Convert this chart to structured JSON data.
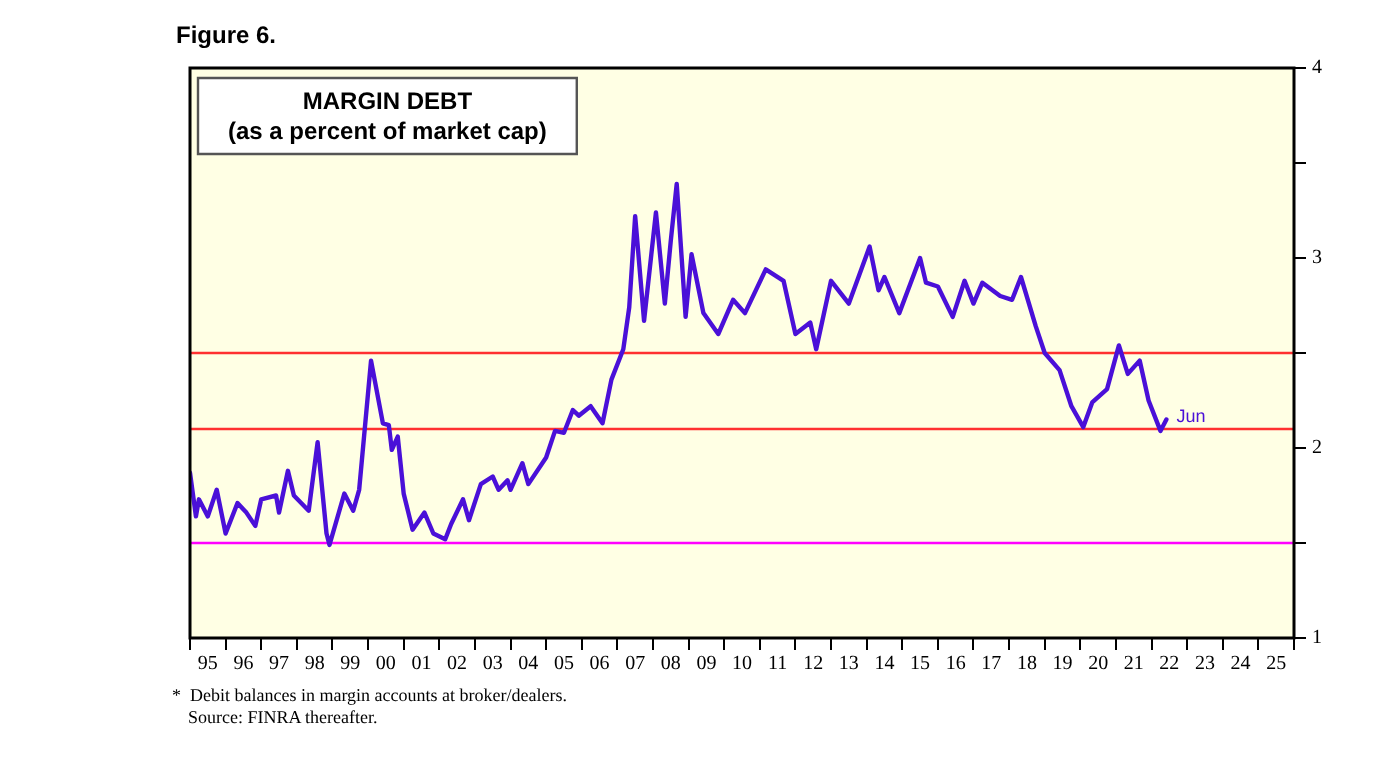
{
  "chart_data": {
    "type": "line",
    "title": "MARGIN DEBT",
    "subtitle": "(as a percent of market cap)",
    "annotations": [
      "Figure 6.",
      {
        "text": "Jun",
        "x": "2022-06",
        "y": 2.15
      },
      "*  Debit balances in margin accounts at broker/dealers.",
      "Source: FINRA thereafter."
    ],
    "series": [
      {
        "color": "#4a10d8",
        "x": [
          "1995-01",
          "1995-03",
          "1995-04",
          "1995-07",
          "1995-10",
          "1996-01",
          "1996-05",
          "1996-08",
          "1996-11",
          "1997-01",
          "1997-06",
          "1997-07",
          "1997-10",
          "1997-12",
          "1998-05",
          "1998-08",
          "1998-11",
          "1998-12",
          "1999-05",
          "1999-08",
          "1999-10",
          "2000-02",
          "2000-06",
          "2000-08",
          "2000-09",
          "2000-11",
          "2001-01",
          "2001-04",
          "2001-08",
          "2001-11",
          "2002-03",
          "2002-05",
          "2002-09",
          "2002-11",
          "2003-03",
          "2003-07",
          "2003-09",
          "2003-12",
          "2004-01",
          "2004-05",
          "2004-07",
          "2005-01",
          "2005-04",
          "2005-07",
          "2005-10",
          "2005-12",
          "2006-04",
          "2006-08",
          "2006-11",
          "2007-03",
          "2007-05",
          "2007-07",
          "2007-10",
          "2008-02",
          "2008-05",
          "2008-07",
          "2008-09",
          "2008-12",
          "2009-02",
          "2009-06",
          "2009-11",
          "2010-04",
          "2010-08",
          "2011-03",
          "2011-09",
          "2012-01",
          "2012-06",
          "2012-08",
          "2013-01",
          "2013-07",
          "2014-02",
          "2014-05",
          "2014-07",
          "2014-12",
          "2015-07",
          "2015-09",
          "2016-01",
          "2016-06",
          "2016-10",
          "2017-01",
          "2017-04",
          "2017-10",
          "2018-02",
          "2018-05",
          "2018-10",
          "2019-01",
          "2019-06",
          "2019-10",
          "2020-02",
          "2020-05",
          "2020-10",
          "2021-02",
          "2021-05",
          "2021-09",
          "2021-12",
          "2022-04",
          "2022-06"
        ],
        "values": [
          1.87,
          1.64,
          1.73,
          1.64,
          1.78,
          1.55,
          1.71,
          1.66,
          1.59,
          1.73,
          1.75,
          1.66,
          1.88,
          1.75,
          1.67,
          2.03,
          1.55,
          1.49,
          1.76,
          1.67,
          1.78,
          2.46,
          2.13,
          2.12,
          1.99,
          2.06,
          1.76,
          1.57,
          1.66,
          1.55,
          1.52,
          1.6,
          1.73,
          1.62,
          1.81,
          1.85,
          1.78,
          1.83,
          1.78,
          1.92,
          1.81,
          1.95,
          2.09,
          2.08,
          2.2,
          2.17,
          2.22,
          2.13,
          2.36,
          2.52,
          2.74,
          3.22,
          2.67,
          3.24,
          2.76,
          3.09,
          3.39,
          2.69,
          3.02,
          2.71,
          2.6,
          2.78,
          2.71,
          2.94,
          2.88,
          2.6,
          2.66,
          2.52,
          2.88,
          2.76,
          3.06,
          2.83,
          2.9,
          2.71,
          3.0,
          2.87,
          2.85,
          2.69,
          2.88,
          2.76,
          2.87,
          2.8,
          2.78,
          2.9,
          2.64,
          2.5,
          2.41,
          2.22,
          2.11,
          2.24,
          2.31,
          2.54,
          2.39,
          2.46,
          2.25,
          2.09,
          2.15
        ]
      }
    ],
    "xlim": [
      "1995",
      "2026"
    ],
    "xticks": [
      {
        "value": "1995",
        "label": null
      },
      {
        "value": "1995-07",
        "label": "95"
      },
      {
        "value": "1996",
        "label": null
      },
      {
        "value": "1996-07",
        "label": "96"
      },
      {
        "value": "1997",
        "label": null
      },
      {
        "value": "1997-07",
        "label": "97"
      },
      {
        "value": "1998",
        "label": null
      },
      {
        "value": "1998-07",
        "label": "98"
      },
      {
        "value": "1999",
        "label": null
      },
      {
        "value": "1999-07",
        "label": "99"
      },
      {
        "value": "2000",
        "label": null
      },
      {
        "value": "2000-07",
        "label": "00"
      },
      {
        "value": "2001",
        "label": null
      },
      {
        "value": "2001-07",
        "label": "01"
      },
      {
        "value": "2002",
        "label": null
      },
      {
        "value": "2002-07",
        "label": "02"
      },
      {
        "value": "2003",
        "label": null
      },
      {
        "value": "2003-07",
        "label": "03"
      },
      {
        "value": "2004",
        "label": null
      },
      {
        "value": "2004-07",
        "label": "04"
      },
      {
        "value": "2005",
        "label": null
      },
      {
        "value": "2005-07",
        "label": "05"
      },
      {
        "value": "2006",
        "label": null
      },
      {
        "value": "2006-07",
        "label": "06"
      },
      {
        "value": "2007",
        "label": null
      },
      {
        "value": "2007-07",
        "label": "07"
      },
      {
        "value": "2008",
        "label": null
      },
      {
        "value": "2008-07",
        "label": "08"
      },
      {
        "value": "2009",
        "label": null
      },
      {
        "value": "2009-07",
        "label": "09"
      },
      {
        "value": "2010",
        "label": null
      },
      {
        "value": "2010-07",
        "label": "10"
      },
      {
        "value": "2011",
        "label": null
      },
      {
        "value": "2011-07",
        "label": "11"
      },
      {
        "value": "2012",
        "label": null
      },
      {
        "value": "2012-07",
        "label": "12"
      },
      {
        "value": "2013",
        "label": null
      },
      {
        "value": "2013-07",
        "label": "13"
      },
      {
        "value": "2014",
        "label": null
      },
      {
        "value": "2014-07",
        "label": "14"
      },
      {
        "value": "2015",
        "label": null
      },
      {
        "value": "2015-07",
        "label": "15"
      },
      {
        "value": "2016",
        "label": null
      },
      {
        "value": "2016-07",
        "label": "16"
      },
      {
        "value": "2017",
        "label": null
      },
      {
        "value": "2017-07",
        "label": "17"
      },
      {
        "value": "2018",
        "label": null
      },
      {
        "value": "2018-07",
        "label": "18"
      },
      {
        "value": "2019",
        "label": null
      },
      {
        "value": "2019-07",
        "label": "19"
      },
      {
        "value": "2020",
        "label": null
      },
      {
        "value": "2020-07",
        "label": "20"
      },
      {
        "value": "2021",
        "label": null
      },
      {
        "value": "2021-07",
        "label": "21"
      },
      {
        "value": "2022",
        "label": null
      },
      {
        "value": "2022-07",
        "label": "22"
      },
      {
        "value": "2023",
        "label": null
      },
      {
        "value": "2023-07",
        "label": "23"
      },
      {
        "value": "2024",
        "label": null
      },
      {
        "value": "2024-07",
        "label": "24"
      },
      {
        "value": "2025",
        "label": null
      },
      {
        "value": "2025-07",
        "label": "25"
      },
      {
        "value": "2026",
        "label": null
      }
    ],
    "ylim": [
      1,
      4
    ],
    "yticks": [
      1,
      {
        "value": 1.5,
        "label": null
      },
      2,
      {
        "value": 2.5,
        "label": null
      },
      3,
      {
        "value": 3.5,
        "label": null
      },
      4
    ],
    "ref_lines": [
      {
        "axis": "y",
        "value": 2.5,
        "color": "#ff3030"
      },
      {
        "axis": "y",
        "value": 2.1,
        "color": "#ff3030"
      },
      {
        "axis": "y",
        "value": 1.5,
        "color": "#ff00ff"
      }
    ],
    "grid": false,
    "legend": false,
    "marker": "none",
    "line_style": "solid"
  }
}
